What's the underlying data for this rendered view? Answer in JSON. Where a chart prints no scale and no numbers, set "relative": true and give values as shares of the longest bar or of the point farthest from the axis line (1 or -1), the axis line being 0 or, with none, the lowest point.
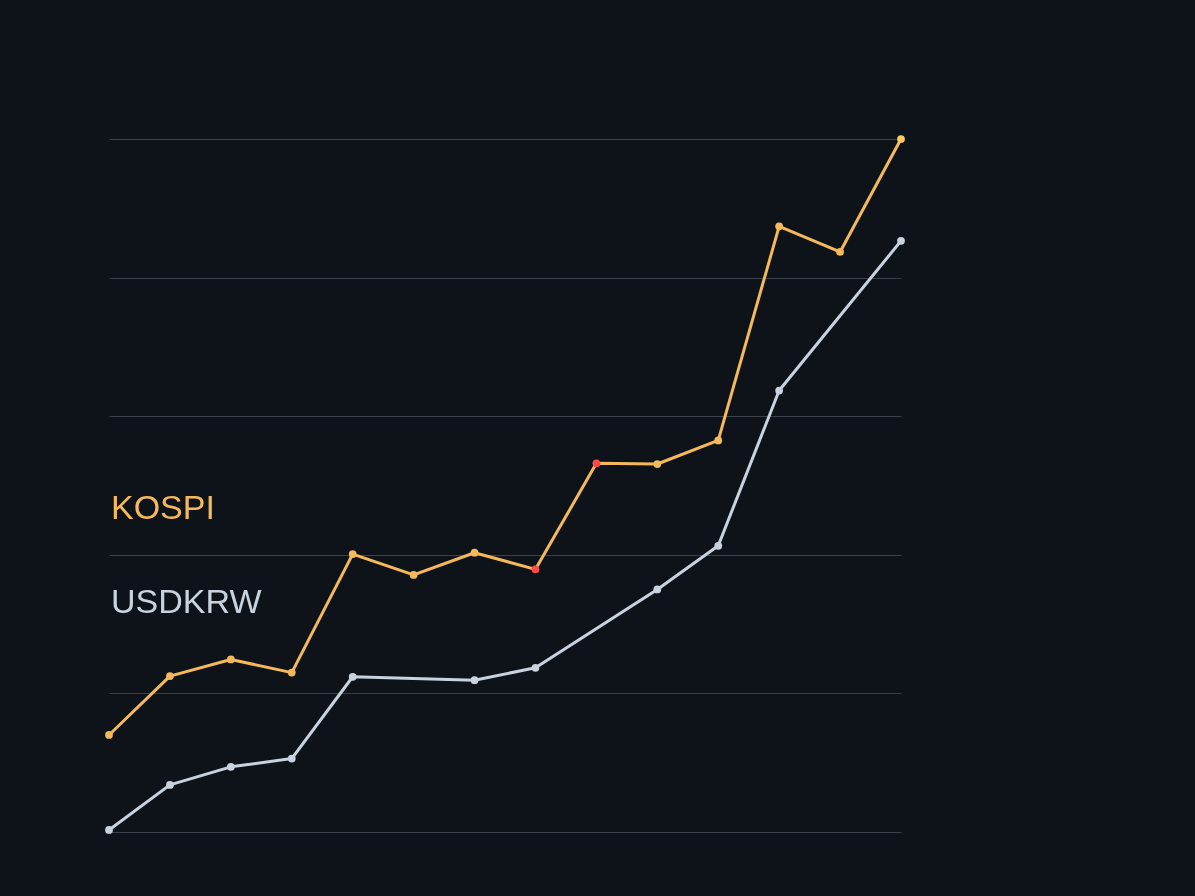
{
  "chart_data": {
    "type": "line",
    "relative": true,
    "grid": "y",
    "marker": "circle",
    "line_style": "solid",
    "categories": [
      null,
      null,
      null,
      null,
      null,
      null,
      null,
      null,
      null,
      null,
      null,
      null,
      null,
      null
    ],
    "series": [
      {
        "name": "KOSPI",
        "color": "#f5b95a",
        "values": [
          0.14,
          0.225,
          0.249,
          0.23,
          0.401,
          0.371,
          0.403,
          0.379,
          0.532,
          0.531,
          0.565,
          0.874,
          0.837,
          1.0
        ],
        "colors": [
          "#f5b95a",
          "#f5b95a",
          "#f5b95a",
          "#f5b95a",
          "#f5b95a",
          "#f5b95a",
          "#f5b95a",
          "#ff4a4a",
          "#ff4a4a",
          "#f5b95a",
          "#f5b95a",
          "#f5b95a",
          "#f5b95a",
          "#ffcc66"
        ]
      },
      {
        "name": "USDKRW",
        "color": "#c9d3e0",
        "values": [
          0.003,
          0.068,
          0.094,
          0.106,
          0.224,
          null,
          0.219,
          0.237,
          null,
          0.35,
          0.413,
          0.637,
          null,
          0.853
        ]
      }
    ]
  }
}
